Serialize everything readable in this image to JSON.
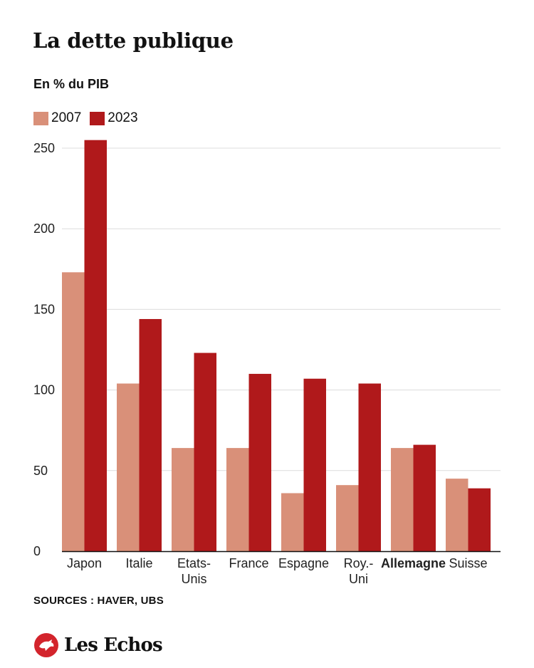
{
  "header": {
    "title": "La dette publique",
    "subtitle": "En % du PIB"
  },
  "footer": {
    "sources": "SOURCES : HAVER, UBS",
    "brand": "Les Echos"
  },
  "colors": {
    "series_2007": "#d99079",
    "series_2023": "#b0191b",
    "grid": "#dcdcdc",
    "axis": "#111111",
    "brand": "#d3242c"
  },
  "chart_data": {
    "type": "bar",
    "title": "La dette publique",
    "subtitle": "En % du PIB",
    "categories": [
      "Japon",
      "Italie",
      "Etats-Unis",
      "France",
      "Espagne",
      "Roy.-Uni",
      "Allemagne",
      "Suisse"
    ],
    "category_lines": [
      [
        "Japon"
      ],
      [
        "Italie"
      ],
      [
        "Etats-",
        "Unis"
      ],
      [
        "France"
      ],
      [
        "Espagne"
      ],
      [
        "Roy.-",
        "Uni"
      ],
      [
        "Allemagne"
      ],
      [
        "Suisse"
      ]
    ],
    "highlighted_category": "Allemagne",
    "series": [
      {
        "name": "2007",
        "values": [
          173,
          104,
          64,
          64,
          36,
          41,
          64,
          45
        ]
      },
      {
        "name": "2023",
        "values": [
          255,
          144,
          123,
          110,
          107,
          104,
          66,
          39
        ]
      }
    ],
    "yticks": [
      0,
      50,
      100,
      150,
      200,
      250
    ],
    "ylim": [
      0,
      260
    ],
    "grid": true,
    "legend_position": "top-left"
  }
}
